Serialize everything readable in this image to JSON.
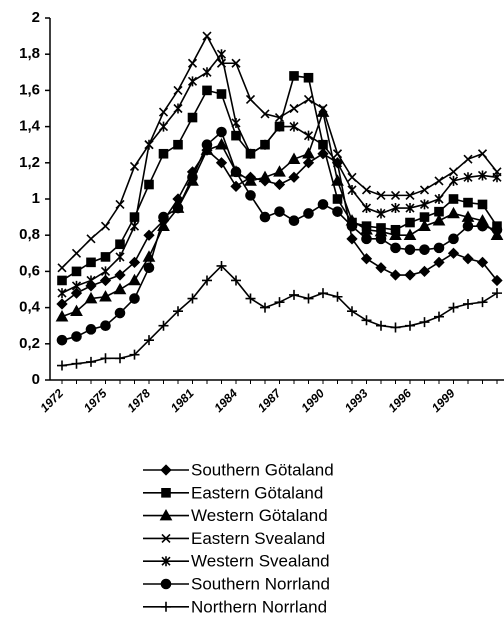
{
  "chart_data": {
    "type": "line",
    "categories": [
      "1972",
      null,
      null,
      "1975",
      null,
      null,
      "1978",
      null,
      null,
      "1981",
      null,
      null,
      "1984",
      null,
      null,
      "1987",
      null,
      null,
      "1990",
      null,
      null,
      "1993",
      null,
      null,
      "1996",
      null,
      null,
      "1999",
      null,
      null,
      null
    ],
    "ylim": [
      0,
      2
    ],
    "yticks": [
      0,
      {
        "value": 0.2,
        "label": "0,2"
      },
      {
        "value": 0.4,
        "label": "0,4"
      },
      {
        "value": 0.6,
        "label": "0,6"
      },
      {
        "value": 0.8,
        "label": "0,8"
      },
      1,
      {
        "value": 1.2,
        "label": "1,2"
      },
      {
        "value": 1.4,
        "label": "1,4"
      },
      {
        "value": 1.6,
        "label": "1,6"
      },
      {
        "value": 1.8,
        "label": "1,8"
      },
      2
    ],
    "grid": false,
    "legend": "bottom",
    "series": [
      {
        "name": "Southern Götaland",
        "color": "#000000",
        "marker": "diamond",
        "values": [
          0.42,
          0.48,
          0.52,
          0.55,
          0.58,
          0.65,
          0.8,
          0.88,
          1.0,
          1.15,
          1.27,
          1.2,
          1.07,
          1.12,
          1.1,
          1.08,
          1.12,
          1.2,
          1.25,
          1.2,
          0.78,
          0.67,
          0.62,
          0.58,
          0.58,
          0.6,
          0.65,
          0.7,
          0.67,
          0.65,
          0.55
        ]
      },
      {
        "name": "Eastern Götaland",
        "color": "#000000",
        "marker": "square",
        "values": [
          0.55,
          0.6,
          0.65,
          0.68,
          0.75,
          0.9,
          1.08,
          1.25,
          1.3,
          1.45,
          1.6,
          1.58,
          1.35,
          1.25,
          1.3,
          1.4,
          1.68,
          1.67,
          1.3,
          1.0,
          0.87,
          0.85,
          0.84,
          0.83,
          0.87,
          0.9,
          0.93,
          1.0,
          0.98,
          0.97,
          0.85
        ]
      },
      {
        "name": "Western Götaland",
        "color": "#000000",
        "marker": "triangle",
        "values": [
          0.35,
          0.38,
          0.45,
          0.46,
          0.5,
          0.55,
          0.68,
          0.85,
          0.95,
          1.1,
          1.27,
          1.3,
          1.15,
          1.1,
          1.12,
          1.15,
          1.22,
          1.25,
          1.48,
          1.1,
          0.88,
          0.83,
          0.82,
          0.8,
          0.8,
          0.85,
          0.88,
          0.92,
          0.9,
          0.88,
          0.8
        ]
      },
      {
        "name": "Eastern Svealand",
        "color": "#000000",
        "marker": "x",
        "values": [
          0.62,
          0.7,
          0.78,
          0.85,
          0.97,
          1.18,
          1.3,
          1.48,
          1.6,
          1.75,
          1.9,
          1.75,
          1.75,
          1.55,
          1.47,
          1.45,
          1.5,
          1.55,
          1.5,
          1.25,
          1.12,
          1.05,
          1.02,
          1.02,
          1.02,
          1.05,
          1.1,
          1.15,
          1.22,
          1.25,
          1.15
        ]
      },
      {
        "name": "Western Svealand",
        "color": "#000000",
        "marker": "star",
        "values": [
          0.48,
          0.52,
          0.55,
          0.6,
          0.68,
          0.85,
          1.3,
          1.4,
          1.5,
          1.65,
          1.7,
          1.8,
          1.42,
          1.25,
          1.3,
          1.4,
          1.4,
          1.35,
          1.3,
          1.2,
          1.05,
          0.95,
          0.92,
          0.95,
          0.95,
          0.97,
          1.0,
          1.1,
          1.12,
          1.13,
          1.12
        ]
      },
      {
        "name": "Southern Norrland",
        "color": "#000000",
        "marker": "circle",
        "values": [
          0.22,
          0.24,
          0.28,
          0.3,
          0.37,
          0.45,
          0.62,
          0.9,
          0.95,
          1.12,
          1.3,
          1.37,
          1.15,
          1.02,
          0.9,
          0.93,
          0.88,
          0.92,
          0.97,
          0.93,
          0.85,
          0.78,
          0.78,
          0.73,
          0.72,
          0.72,
          0.73,
          0.78,
          0.85,
          0.85,
          0.83
        ]
      },
      {
        "name": "Northern Norrland",
        "color": "#000000",
        "marker": "plus",
        "values": [
          0.08,
          0.09,
          0.1,
          0.12,
          0.12,
          0.14,
          0.22,
          0.3,
          0.38,
          0.45,
          0.55,
          0.63,
          0.55,
          0.45,
          0.4,
          0.43,
          0.47,
          0.45,
          0.48,
          0.46,
          0.38,
          0.33,
          0.3,
          0.29,
          0.3,
          0.32,
          0.35,
          0.4,
          0.42,
          0.43,
          0.48
        ]
      }
    ]
  }
}
